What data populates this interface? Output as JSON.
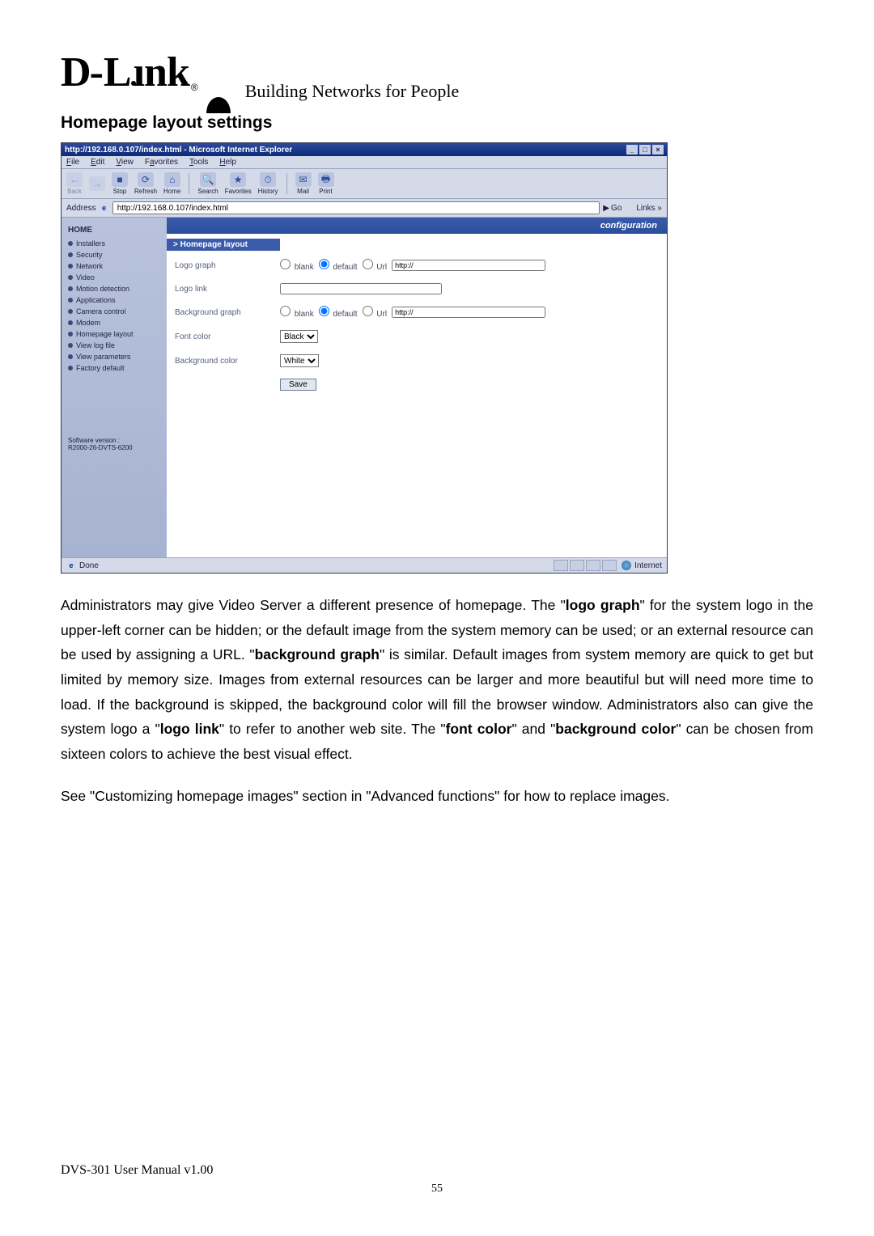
{
  "brand": {
    "name": "D-Link",
    "tagline": "Building Networks for People"
  },
  "section_title": "Homepage layout settings",
  "ie": {
    "titlebar": "http://192.168.0.107/index.html - Microsoft Internet Explorer",
    "menus": [
      "File",
      "Edit",
      "View",
      "Favorites",
      "Tools",
      "Help"
    ],
    "toolbar": [
      {
        "label": "Back",
        "glyph": "←",
        "faded": true
      },
      {
        "label": "",
        "glyph": "→",
        "faded": true
      },
      {
        "label": "Stop",
        "glyph": "■",
        "faded": false
      },
      {
        "label": "Refresh",
        "glyph": "⟳",
        "faded": false
      },
      {
        "label": "Home",
        "glyph": "⌂",
        "faded": false
      },
      {
        "label": "Search",
        "glyph": "🔍",
        "faded": false,
        "sep_before": true
      },
      {
        "label": "Favorites",
        "glyph": "★",
        "faded": false
      },
      {
        "label": "History",
        "glyph": "⏱",
        "faded": false
      },
      {
        "label": "Mail",
        "glyph": "✉",
        "faded": false,
        "sep_before": true
      },
      {
        "label": "Print",
        "glyph": "🖶",
        "faded": false
      }
    ],
    "address_label": "Address",
    "address_value": "http://192.168.0.107/index.html",
    "go_label": "Go",
    "links_label": "Links »",
    "status_done": "Done",
    "status_inet": "Internet"
  },
  "sidebar": {
    "home": "HOME",
    "items": [
      "Installers",
      "Security",
      "Network",
      "Video",
      "Motion detection",
      "Applications",
      "Camera control",
      "Modem",
      "Homepage layout",
      "View log file",
      "View parameters",
      "Factory default"
    ],
    "version": "Software version :\nR2000-26-DVTS-6200"
  },
  "config": {
    "banner": "configuration",
    "section": "> Homepage layout",
    "rows": {
      "logo_graph": {
        "label": "Logo graph",
        "opts": [
          "blank",
          "default",
          "Url"
        ],
        "url": "http://"
      },
      "logo_link": {
        "label": "Logo link",
        "value": ""
      },
      "bg_graph": {
        "label": "Background graph",
        "opts": [
          "blank",
          "default",
          "Url"
        ],
        "url": "http://"
      },
      "font_color": {
        "label": "Font color",
        "value": "Black"
      },
      "bg_color": {
        "label": "Background color",
        "value": "White"
      }
    },
    "save": "Save"
  },
  "paragraph1_parts": [
    "Administrators may give Video Server a different presence of homepage. The \"",
    "logo graph",
    "\" for the system logo in the upper-left corner can be hidden; or the default image from the system memory can be used; or an external resource can be used by assigning a URL. \"",
    "background graph",
    "\" is similar. Default images from system memory are quick to get but limited by memory size. Images from external resources can be larger and more beautiful but will need more time to load. If the background is skipped, the background color will fill the browser window. Administrators also can give the system logo a \"",
    "logo link",
    "\" to refer to another web site. The \"",
    "font color",
    "\" and \"",
    "background color",
    "\" can be chosen from sixteen colors to achieve the best visual effect."
  ],
  "paragraph2": "See \"Customizing homepage images\" section in \"Advanced functions\" for how to replace images.",
  "footer": {
    "note": "DVS-301 User Manual v1.00",
    "page": "55"
  },
  "colors": {
    "ie_title_grad_a": "#2e4a9a",
    "ie_title_grad_b": "#0b2a7a",
    "sidebar_a": "#b8c2dc",
    "sidebar_b": "#a6b3d1",
    "accent": "#3a5aaa"
  }
}
